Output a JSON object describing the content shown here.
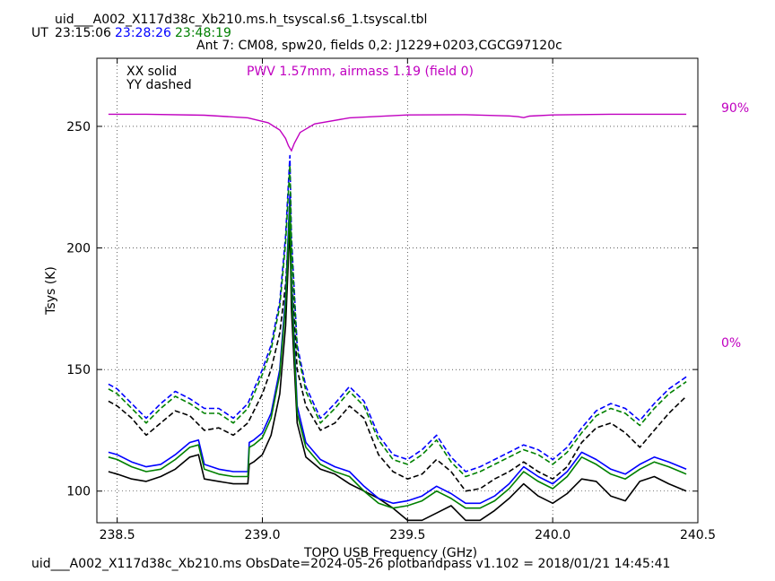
{
  "header": {
    "filename": "uid___A002_X117d38c_Xb210.ms.h_tsyscal.s6_1.tsyscal.tbl",
    "ut_label": "UT",
    "times": [
      {
        "text": "23:15:06",
        "color": "#000000"
      },
      {
        "text": "23:28:26",
        "color": "#0000ff"
      },
      {
        "text": "23:48:19",
        "color": "#008000"
      }
    ],
    "subtitle": "Ant 7: CM08,  spw20,  fields 0,2: J1229+0203,CGCG97120c"
  },
  "legend": {
    "xx": "XX solid",
    "yy": "YY dashed",
    "pwv": "PWV 1.57mm, airmass 1.19 (field 0)",
    "pwv_color": "#c000c0"
  },
  "footer": "uid___A002_X117d38c_Xb210.ms  ObsDate=2024-05-26   plotbandpass v1.102 = 2018/01/21 14:45:41",
  "chart_data": {
    "type": "line",
    "xlabel": "TOPO USB Frequency (GHz)",
    "ylabel": "Tsys (K)",
    "xlim": [
      238.43,
      240.5
    ],
    "ylim": [
      87,
      278
    ],
    "xticks": [
      238.5,
      239.0,
      239.5,
      240.0,
      240.5
    ],
    "xtick_labels": [
      "238.5",
      "239.0",
      "239.5",
      "240.0",
      "240.5"
    ],
    "yticks": [
      100,
      150,
      200,
      250
    ],
    "ytick_labels": [
      "100",
      "150",
      "200",
      "250"
    ],
    "grid": true,
    "right_axis": {
      "labels": [
        "90%",
        "0%"
      ],
      "values": [
        90,
        0
      ],
      "color": "#c000c0"
    },
    "series": [
      {
        "color": "#000000",
        "dash": false,
        "x": [
          238.47,
          238.5,
          238.55,
          238.6,
          238.65,
          238.7,
          238.75,
          238.78,
          238.8,
          238.85,
          238.9,
          238.95,
          238.955,
          238.97,
          239.0,
          239.03,
          239.06,
          239.08,
          239.095,
          239.1,
          239.12,
          239.15,
          239.2,
          239.25,
          239.3,
          239.35,
          239.4,
          239.45,
          239.5,
          239.55,
          239.6,
          239.65,
          239.7,
          239.75,
          239.8,
          239.85,
          239.9,
          239.95,
          240.0,
          240.05,
          240.1,
          240.15,
          240.2,
          240.25,
          240.3,
          240.35,
          240.4,
          240.46
        ],
        "y": [
          108,
          107,
          105,
          104,
          106,
          109,
          114,
          115,
          105,
          104,
          103,
          103,
          111,
          112,
          115,
          123,
          140,
          168,
          210,
          175,
          128,
          114,
          109,
          107,
          103,
          100,
          97,
          93,
          88,
          88,
          91,
          94,
          88,
          88,
          92,
          97,
          103,
          98,
          95,
          99,
          105,
          104,
          98,
          96,
          104,
          106,
          103,
          100
        ]
      },
      {
        "color": "#000000",
        "dash": true,
        "x": [
          238.47,
          238.5,
          238.55,
          238.6,
          238.65,
          238.7,
          238.75,
          238.8,
          238.85,
          238.9,
          238.95,
          239.0,
          239.03,
          239.06,
          239.08,
          239.095,
          239.1,
          239.12,
          239.15,
          239.2,
          239.25,
          239.3,
          239.35,
          239.4,
          239.45,
          239.5,
          239.55,
          239.6,
          239.65,
          239.7,
          239.75,
          239.8,
          239.85,
          239.9,
          239.95,
          240.0,
          240.05,
          240.1,
          240.15,
          240.2,
          240.25,
          240.3,
          240.35,
          240.4,
          240.46
        ],
        "y": [
          137,
          135,
          130,
          123,
          128,
          133,
          131,
          125,
          126,
          123,
          128,
          140,
          150,
          165,
          185,
          215,
          190,
          150,
          135,
          125,
          128,
          135,
          130,
          115,
          108,
          105,
          107,
          113,
          108,
          100,
          101,
          105,
          108,
          112,
          108,
          105,
          110,
          120,
          126,
          128,
          124,
          118,
          125,
          132,
          139
        ]
      },
      {
        "color": "#0000ff",
        "dash": false,
        "x": [
          238.47,
          238.5,
          238.55,
          238.6,
          238.65,
          238.7,
          238.75,
          238.78,
          238.8,
          238.85,
          238.9,
          238.95,
          238.955,
          238.97,
          239.0,
          239.03,
          239.06,
          239.08,
          239.095,
          239.1,
          239.12,
          239.15,
          239.2,
          239.25,
          239.3,
          239.35,
          239.4,
          239.45,
          239.5,
          239.55,
          239.6,
          239.65,
          239.7,
          239.75,
          239.8,
          239.85,
          239.9,
          239.95,
          240.0,
          240.05,
          240.1,
          240.15,
          240.2,
          240.25,
          240.3,
          240.35,
          240.4,
          240.46
        ],
        "y": [
          116,
          115,
          112,
          110,
          111,
          115,
          120,
          121,
          111,
          109,
          108,
          108,
          120,
          121,
          124,
          132,
          150,
          180,
          222,
          188,
          135,
          120,
          113,
          110,
          108,
          102,
          97,
          95,
          96,
          98,
          102,
          99,
          95,
          95,
          98,
          103,
          110,
          106,
          103,
          108,
          116,
          113,
          109,
          107,
          111,
          114,
          112,
          109
        ]
      },
      {
        "color": "#0000ff",
        "dash": true,
        "x": [
          238.47,
          238.5,
          238.55,
          238.6,
          238.65,
          238.7,
          238.75,
          238.8,
          238.85,
          238.9,
          238.95,
          239.0,
          239.03,
          239.06,
          239.08,
          239.095,
          239.1,
          239.12,
          239.15,
          239.2,
          239.25,
          239.3,
          239.35,
          239.4,
          239.45,
          239.5,
          239.55,
          239.6,
          239.65,
          239.7,
          239.75,
          239.8,
          239.85,
          239.9,
          239.95,
          240.0,
          240.05,
          240.1,
          240.15,
          240.2,
          240.25,
          240.3,
          240.35,
          240.4,
          240.46
        ],
        "y": [
          144,
          142,
          136,
          130,
          136,
          141,
          138,
          134,
          134,
          130,
          136,
          150,
          160,
          178,
          205,
          238,
          205,
          160,
          143,
          130,
          136,
          143,
          137,
          123,
          115,
          113,
          117,
          123,
          114,
          108,
          110,
          113,
          116,
          119,
          117,
          113,
          118,
          126,
          133,
          136,
          134,
          129,
          136,
          142,
          147
        ]
      },
      {
        "color": "#008000",
        "dash": false,
        "x": [
          238.47,
          238.5,
          238.55,
          238.6,
          238.65,
          238.7,
          238.75,
          238.78,
          238.8,
          238.85,
          238.9,
          238.95,
          238.955,
          238.97,
          239.0,
          239.03,
          239.06,
          239.08,
          239.095,
          239.1,
          239.12,
          239.15,
          239.2,
          239.25,
          239.3,
          239.35,
          239.4,
          239.45,
          239.5,
          239.55,
          239.6,
          239.65,
          239.7,
          239.75,
          239.8,
          239.85,
          239.9,
          239.95,
          240.0,
          240.05,
          240.1,
          240.15,
          240.2,
          240.25,
          240.3,
          240.35,
          240.4,
          240.46
        ],
        "y": [
          114,
          113,
          110,
          108,
          109,
          113,
          118,
          119,
          109,
          107,
          106,
          106,
          118,
          119,
          122,
          130,
          148,
          177,
          218,
          185,
          132,
          118,
          111,
          108,
          106,
          100,
          95,
          93,
          94,
          96,
          100,
          97,
          93,
          93,
          96,
          101,
          108,
          104,
          101,
          106,
          114,
          111,
          107,
          105,
          109,
          112,
          110,
          107
        ]
      },
      {
        "color": "#008000",
        "dash": true,
        "x": [
          238.47,
          238.5,
          238.55,
          238.6,
          238.65,
          238.7,
          238.75,
          238.8,
          238.85,
          238.9,
          238.95,
          239.0,
          239.03,
          239.06,
          239.08,
          239.095,
          239.1,
          239.12,
          239.15,
          239.2,
          239.25,
          239.3,
          239.35,
          239.4,
          239.45,
          239.5,
          239.55,
          239.6,
          239.65,
          239.7,
          239.75,
          239.8,
          239.85,
          239.9,
          239.95,
          240.0,
          240.05,
          240.1,
          240.15,
          240.2,
          240.25,
          240.3,
          240.35,
          240.4,
          240.46
        ],
        "y": [
          142,
          140,
          134,
          128,
          134,
          139,
          136,
          132,
          132,
          128,
          134,
          148,
          158,
          176,
          202,
          234,
          202,
          158,
          141,
          128,
          134,
          141,
          135,
          121,
          113,
          111,
          115,
          121,
          112,
          106,
          108,
          111,
          114,
          117,
          115,
          111,
          116,
          124,
          131,
          134,
          132,
          127,
          134,
          140,
          145
        ]
      }
    ],
    "atmosphere": {
      "color": "#c000c0",
      "x": [
        238.47,
        238.6,
        238.8,
        238.95,
        239.02,
        239.06,
        239.08,
        239.09,
        239.1,
        239.11,
        239.13,
        239.18,
        239.3,
        239.5,
        239.7,
        239.85,
        239.88,
        239.9,
        239.92,
        240.0,
        240.2,
        240.46
      ],
      "y": [
        255,
        255,
        254.6,
        253.5,
        251.5,
        248.5,
        245,
        242,
        240,
        243,
        247.5,
        251,
        253.5,
        254.7,
        254.8,
        254.3,
        254,
        253.6,
        254.2,
        254.7,
        255,
        255
      ]
    }
  }
}
